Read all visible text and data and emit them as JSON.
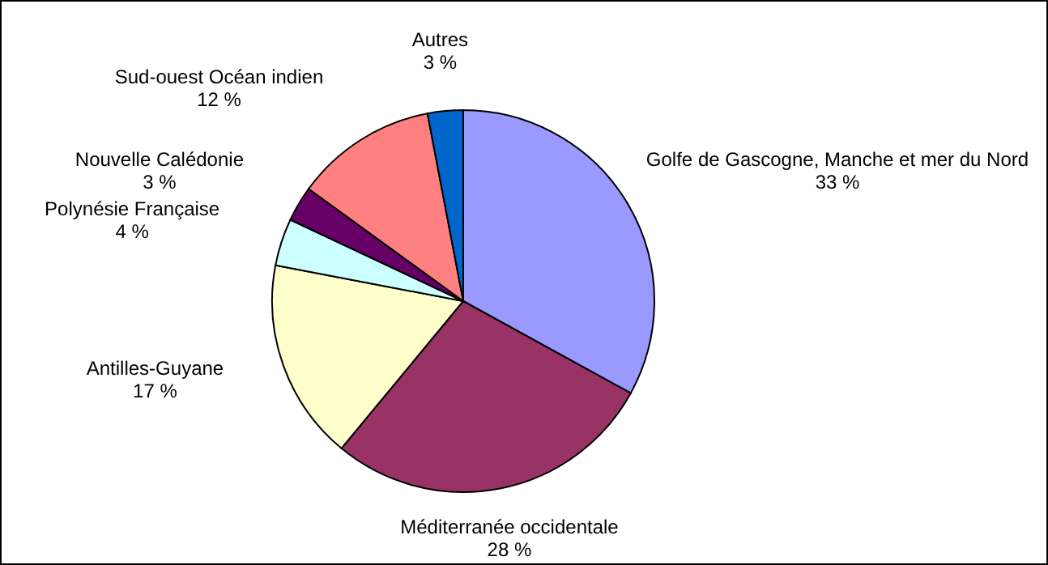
{
  "chart_data": {
    "type": "pie",
    "categories": [
      "Golfe de Gascogne, Manche et mer du Nord",
      "Méditerranée occidentale",
      "Antilles-Guyane",
      "Polynésie Française",
      "Nouvelle Calédonie",
      "Sud-ouest Océan indien",
      "Autres"
    ],
    "values": [
      33,
      28,
      17,
      4,
      3,
      12,
      3
    ],
    "colors": [
      "#9999ff",
      "#993366",
      "#ffffcc",
      "#ccffff",
      "#660066",
      "#ff8080",
      "#0066cc"
    ],
    "value_labels": [
      "33 %",
      "28 %",
      "17 %",
      "4 %",
      "3 %",
      "12 %",
      "3 %"
    ]
  }
}
